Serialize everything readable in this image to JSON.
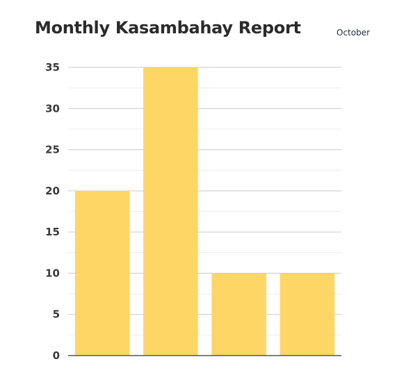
{
  "header": {
    "title": "Monthly Kasambahay Report",
    "month": "October"
  },
  "chart_data": {
    "type": "bar",
    "title": "Monthly Kasambahay Report",
    "subtitle": "October",
    "categories": [
      "",
      "",
      "",
      ""
    ],
    "values": [
      20,
      35,
      10,
      10
    ],
    "xlabel": "",
    "ylabel": "",
    "ylim": [
      0,
      35
    ],
    "yticks": [
      0,
      5,
      10,
      15,
      20,
      25,
      30,
      35
    ],
    "grid": true,
    "bar_color": "#FDD666",
    "major_grid_color": "#c9c9c9",
    "minor_grid_color": "#ececec",
    "axis_color": "#555555"
  }
}
